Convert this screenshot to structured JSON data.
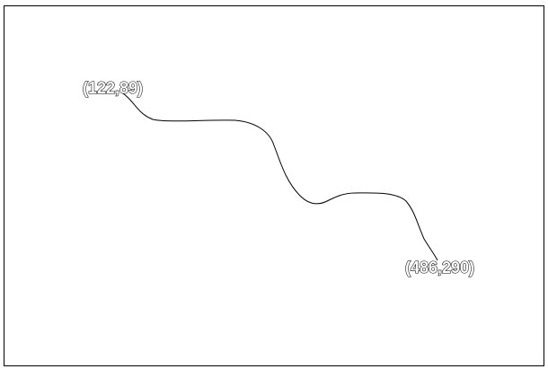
{
  "canvas": {
    "background": "#ffffff",
    "border_color": "#000000"
  },
  "path": {
    "stroke_color": "#000000",
    "start_label": "(122,89)",
    "end_label": "(486,290)"
  }
}
